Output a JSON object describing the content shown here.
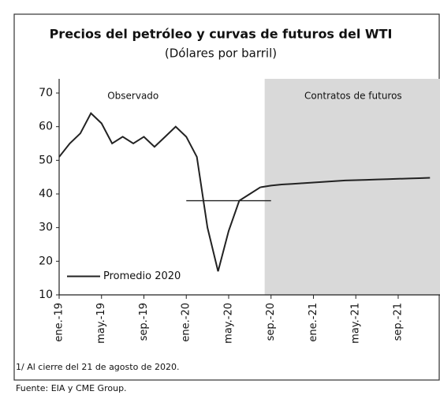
{
  "chart_data": {
    "type": "line",
    "title": "Precios del petróleo y curvas de futuros del WTI",
    "subtitle": "(Dólares por barril)",
    "categories": [
      "ene.-19",
      null,
      null,
      null,
      "may.-19",
      null,
      null,
      null,
      "sep.-19",
      null,
      null,
      null,
      "ene.-20",
      null,
      null,
      null,
      "may.-20",
      null,
      null,
      null,
      "sep.-20",
      null,
      null,
      null,
      "ene.-21",
      null,
      null,
      null,
      "may.-21",
      null,
      null,
      null,
      "sep.-21",
      null,
      null,
      null
    ],
    "series": [
      {
        "name": "Observado",
        "color": "#222222",
        "values": [
          51,
          55,
          58,
          64,
          61,
          55,
          57,
          55,
          57,
          54,
          57,
          60,
          57,
          51,
          30,
          17,
          29,
          38,
          40,
          42,
          null,
          null,
          null,
          null,
          null,
          null,
          null,
          null,
          null,
          null,
          null,
          null,
          null,
          null,
          null,
          null
        ]
      },
      {
        "name": "Contratos de futuros",
        "color": "#222222",
        "values": [
          null,
          null,
          null,
          null,
          null,
          null,
          null,
          null,
          null,
          null,
          null,
          null,
          null,
          null,
          null,
          null,
          null,
          null,
          null,
          42,
          42.5,
          42.8,
          43,
          43.2,
          43.4,
          43.6,
          43.8,
          44,
          44.1,
          44.2,
          44.3,
          44.4,
          44.5,
          44.6,
          44.7,
          44.8
        ]
      },
      {
        "name": "Promedio 2020",
        "color": "#222222",
        "values": [
          null,
          null,
          null,
          null,
          null,
          null,
          null,
          null,
          null,
          null,
          null,
          null,
          38,
          38,
          38,
          38,
          38,
          38,
          38,
          38,
          38,
          null,
          null,
          null,
          null,
          null,
          null,
          null,
          null,
          null,
          null,
          null,
          null,
          null,
          null,
          null
        ]
      }
    ],
    "ylim": [
      10,
      70
    ],
    "yticks": [
      10,
      20,
      30,
      40,
      50,
      60,
      70
    ],
    "notes": [
      "1/ Al cierre del 21 de agosto de 2020.",
      "Fuente: EIA y CME Group."
    ]
  }
}
